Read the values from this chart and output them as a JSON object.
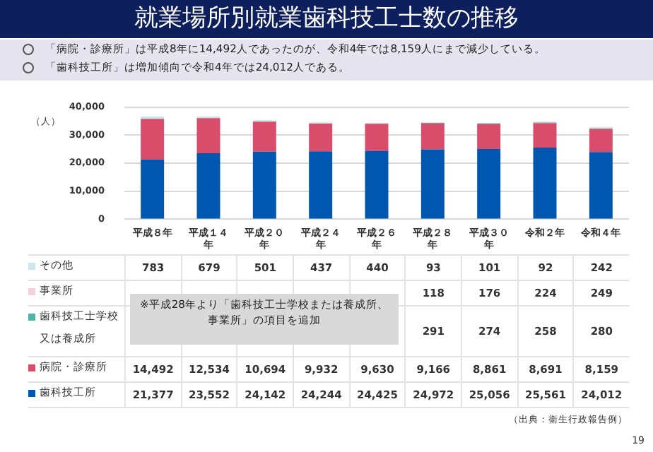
{
  "chart_data": {
    "type": "bar",
    "title": "就業場所別就業歯科技工士数の推移",
    "annotations": [
      "「病院・診療所」は平成8年に14,492人であったのが、令和4年では8,159人にまで減少している。",
      "「歯科技工所」は増加傾向で令和4年では24,012人である。",
      "※平成28年より「歯科技工士学校または養成所、事業所」の項目を追加",
      "（出典：衛生行政報告例）",
      "19"
    ],
    "ylabel": "（人）",
    "categories": [
      "平成８年",
      "平成１４年",
      "平成２０年",
      "平成２４年",
      "平成２６年",
      "平成２８年",
      "平成３０年",
      "令和２年",
      "令和４年"
    ],
    "stacked": true,
    "series": [
      {
        "name": "歯科技工所",
        "color": "#0057b0",
        "values": [
          21377,
          23552,
          24142,
          24244,
          24425,
          24972,
          25056,
          25561,
          24012
        ],
        "value_labels": [
          "21,377",
          "23,552",
          "24,142",
          "24,244",
          "24,425",
          "24,972",
          "25,056",
          "25,561",
          "24,012"
        ]
      },
      {
        "name": "病院・診療所",
        "color": "#d94d6b",
        "values": [
          14492,
          12534,
          10694,
          9932,
          9630,
          9166,
          8861,
          8691,
          8159
        ],
        "value_labels": [
          "14,492",
          "12,534",
          "10,694",
          "9,932",
          "9,630",
          "9,166",
          "8,861",
          "8,691",
          "8,159"
        ]
      },
      {
        "name": "歯科技工士学校又は養成所",
        "color": "#4fb3a9",
        "values": [
          null,
          null,
          null,
          null,
          null,
          291,
          274,
          258,
          280
        ],
        "value_labels": [
          null,
          null,
          null,
          null,
          null,
          "291",
          "274",
          "258",
          "280"
        ]
      },
      {
        "name": "事業所",
        "color": "#f6d0d8",
        "values": [
          null,
          null,
          null,
          null,
          null,
          118,
          176,
          224,
          249
        ],
        "value_labels": [
          null,
          null,
          null,
          null,
          null,
          "118",
          "176",
          "224",
          "249"
        ]
      },
      {
        "name": "その他",
        "color": "#c9e8ee",
        "values": [
          783,
          679,
          501,
          437,
          440,
          93,
          101,
          92,
          242
        ],
        "value_labels": [
          "783",
          "679",
          "501",
          "437",
          "440",
          "93",
          "101",
          "92",
          "242"
        ]
      }
    ],
    "ylim": [
      0,
      40000
    ],
    "yticks": [
      0,
      {
        "value": 10000,
        "label": "10,000"
      },
      {
        "value": 20000,
        "label": "20,000"
      },
      {
        "value": 30000,
        "label": "30,000"
      },
      {
        "value": 40000,
        "label": "40,000"
      }
    ],
    "grid": "y",
    "legend": "bottom"
  }
}
